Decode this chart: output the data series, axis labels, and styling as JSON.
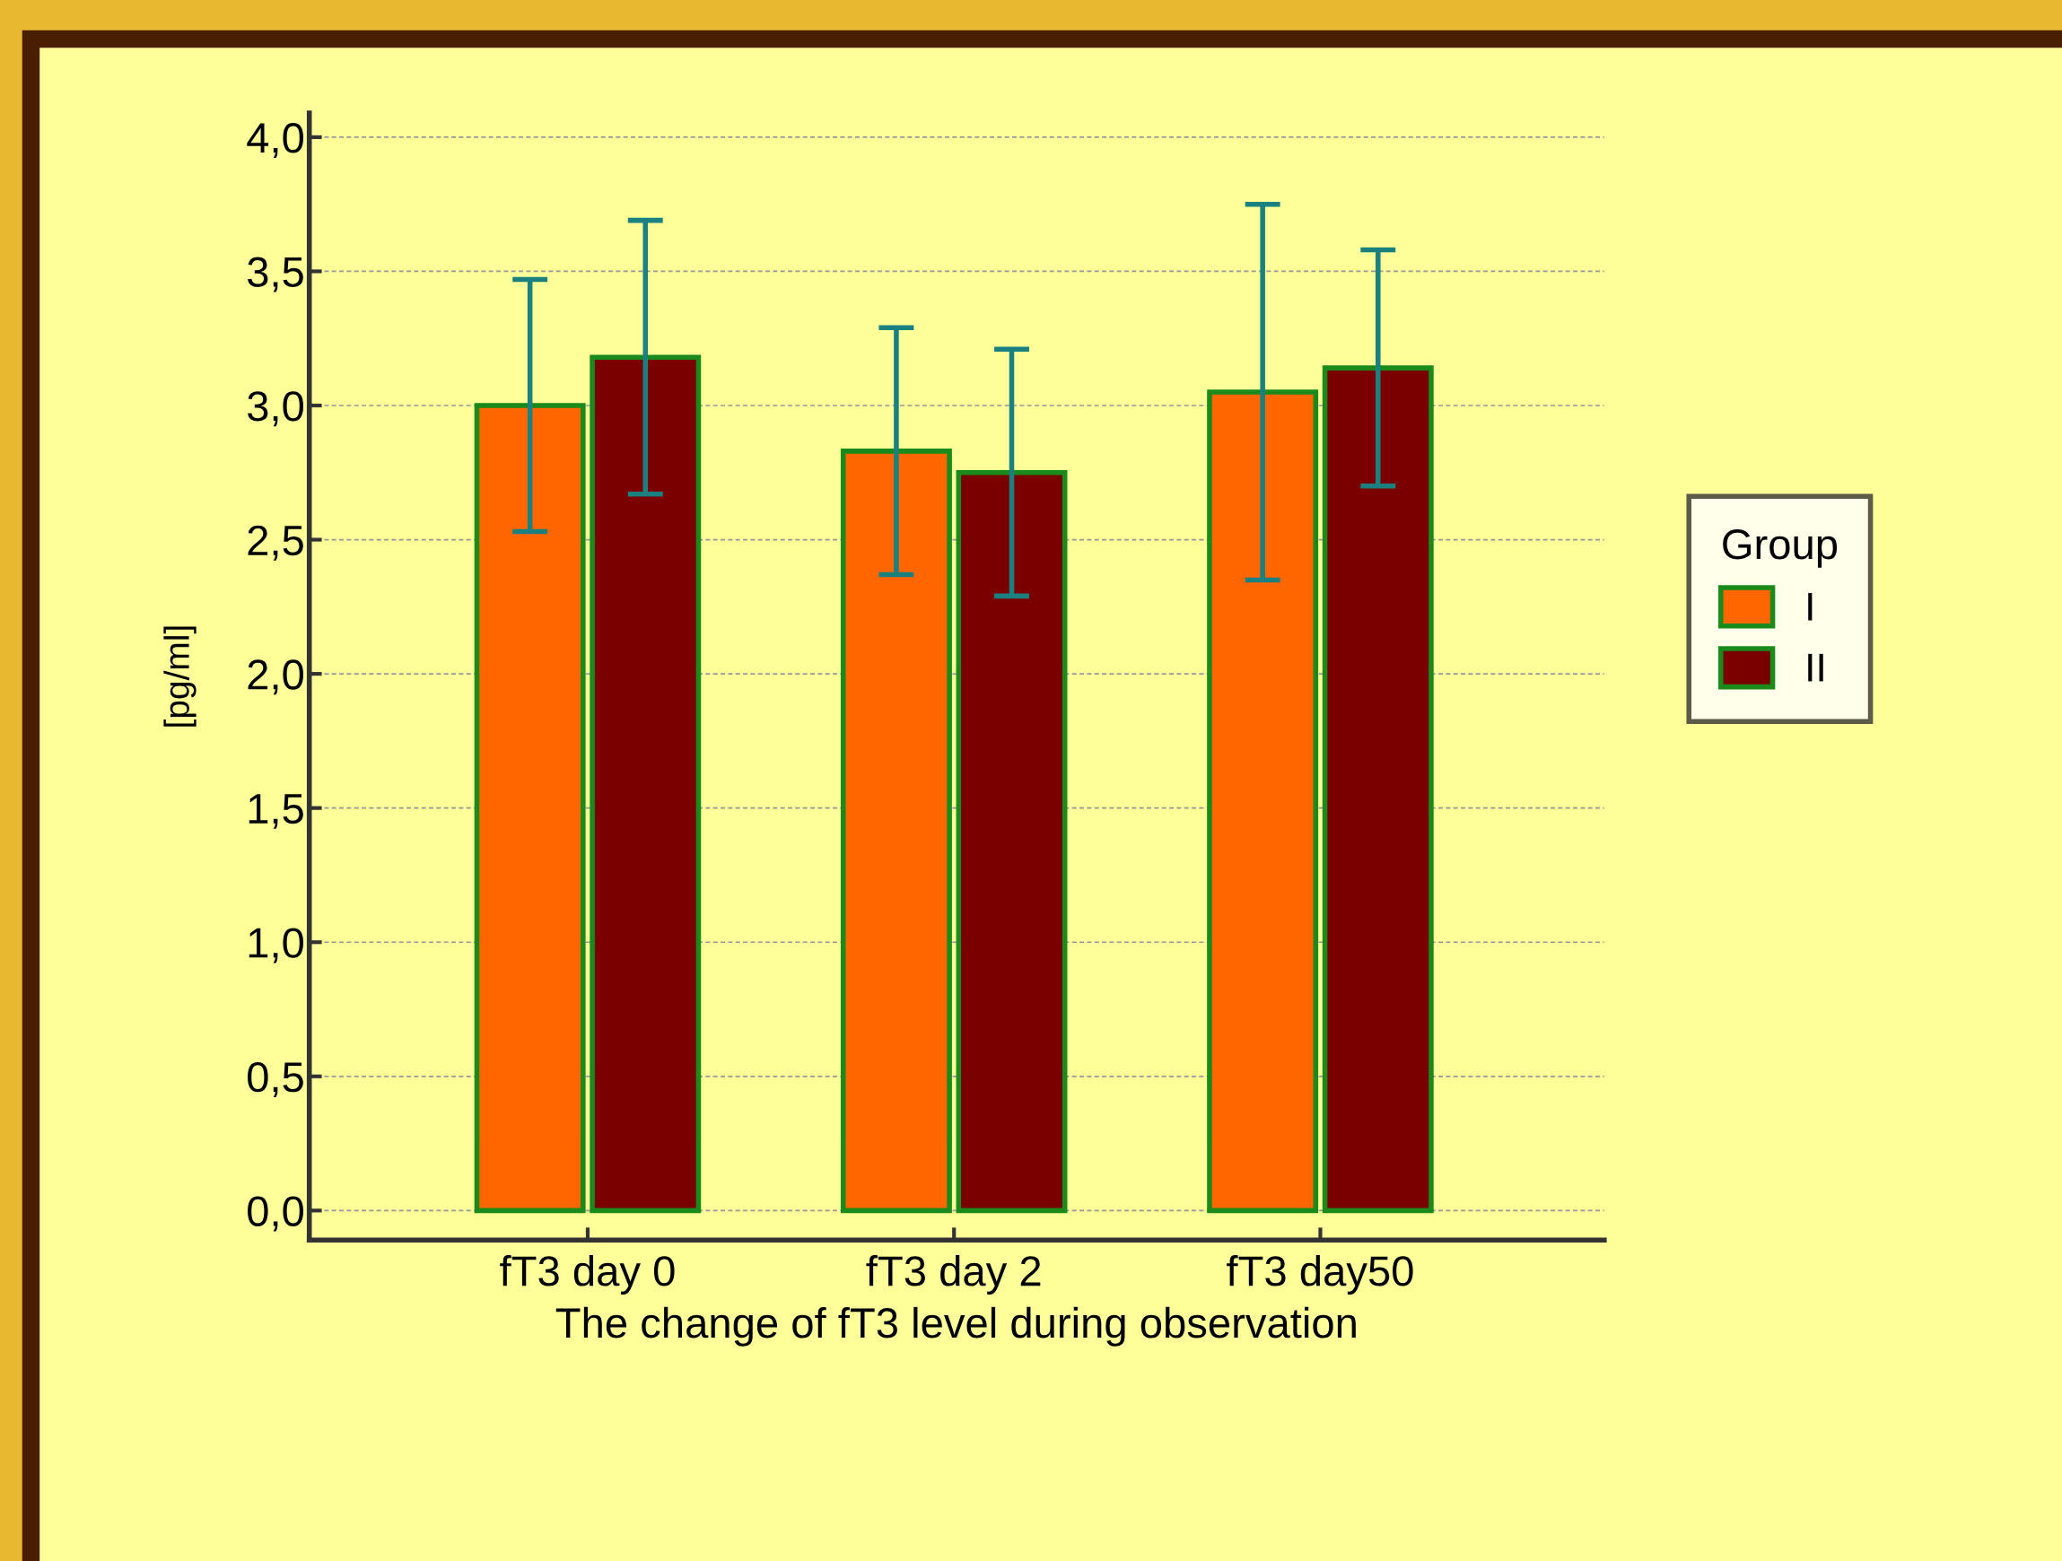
{
  "chart_data": {
    "type": "bar",
    "xlabel": "The change of fT3 level during observation",
    "ylabel": "[pg/ml]",
    "legend_title": "Group",
    "categories": [
      "fT3 day 0",
      "fT3 day 2",
      "fT3 day50"
    ],
    "series": [
      {
        "name": "I",
        "color": "#ff6600",
        "values": [
          3.0,
          2.83,
          3.05
        ],
        "errors": [
          0.47,
          0.46,
          0.7
        ]
      },
      {
        "name": "II",
        "color": "#7a0000",
        "values": [
          3.18,
          2.75,
          3.14
        ],
        "errors": [
          0.51,
          0.46,
          0.44
        ]
      }
    ],
    "ylim": [
      -0.11,
      4.09
    ],
    "yticks": [
      {
        "value": 0,
        "label": "0,0"
      },
      {
        "value": 0.5,
        "label": "0,5"
      },
      {
        "value": 1,
        "label": "1,0"
      },
      {
        "value": 1.5,
        "label": "1,5"
      },
      {
        "value": 2,
        "label": "2,0"
      },
      {
        "value": 2.5,
        "label": "2,5"
      },
      {
        "value": 3,
        "label": "3,0"
      },
      {
        "value": 3.5,
        "label": "3,5"
      },
      {
        "value": 4,
        "label": "4,0"
      }
    ],
    "grid": "y",
    "legend": "right"
  }
}
